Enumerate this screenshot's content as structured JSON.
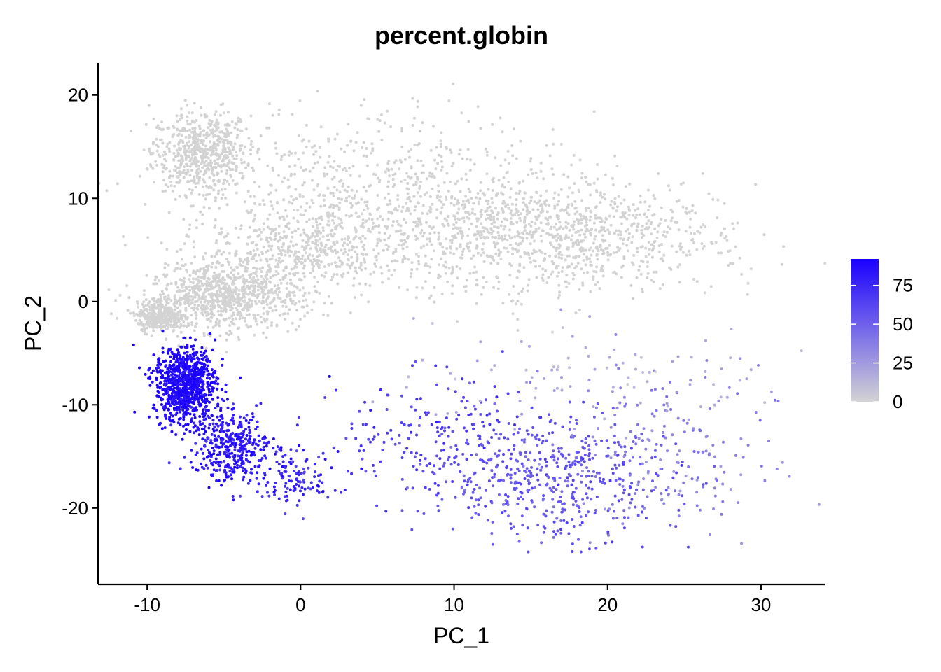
{
  "chart_data": {
    "type": "scatter",
    "title": "percent.globin",
    "xlabel": "PC_1",
    "ylabel": "PC_2",
    "xlim": [
      -13.2,
      34.2
    ],
    "ylim": [
      -27.4,
      23.1
    ],
    "x_ticks": [
      -10,
      0,
      10,
      20,
      30
    ],
    "x_tick_labels": [
      "-10",
      "0",
      "10",
      "20",
      "30"
    ],
    "y_ticks": [
      -20,
      -10,
      0,
      10,
      20
    ],
    "y_tick_labels": [
      "-20",
      "-10",
      "0",
      "10",
      "20"
    ],
    "grid": false,
    "legend": {
      "position": "right",
      "type": "colorbar",
      "range": [
        0,
        92
      ],
      "ticks": [
        0,
        25,
        50,
        75
      ],
      "tick_labels": [
        "0",
        "25",
        "50",
        "75"
      ],
      "low_color": "#d3d3d3",
      "high_color": "#1a00ff"
    },
    "clusters": [
      {
        "name": "",
        "n": 650,
        "cx": -6.5,
        "cy": 14.5,
        "sx": 1.6,
        "sy": 2.0,
        "value": 0
      },
      {
        "name": "",
        "n": 900,
        "cx": -5.0,
        "cy": 0.5,
        "sx": 2.5,
        "sy": 1.6,
        "value": 0
      },
      {
        "name": "",
        "n": 350,
        "cx": -9.2,
        "cy": -1.5,
        "sx": 0.7,
        "sy": 0.7,
        "value": 0
      },
      {
        "name": "",
        "n": 700,
        "cx": 5.0,
        "cy": 10.0,
        "sx": 6.0,
        "sy": 4.0,
        "value": 0
      },
      {
        "name": "",
        "n": 1100,
        "cx": 16.0,
        "cy": 6.5,
        "sx": 5.5,
        "sy": 2.8,
        "value": 0
      },
      {
        "name": "",
        "n": 450,
        "cx": 0.0,
        "cy": 5.0,
        "sx": 3.0,
        "sy": 1.8,
        "value": 0
      },
      {
        "name": "",
        "n": 900,
        "cx": -7.5,
        "cy": -8.0,
        "sx": 1.0,
        "sy": 1.8,
        "value": 90
      },
      {
        "name": "",
        "n": 380,
        "cx": -4.5,
        "cy": -14.0,
        "sx": 1.3,
        "sy": 1.7,
        "value": 82
      },
      {
        "name": "",
        "n": 120,
        "cx": -0.5,
        "cy": -17.0,
        "sx": 1.5,
        "sy": 1.3,
        "value": 75
      },
      {
        "name": "",
        "n": 160,
        "cx": 8.0,
        "cy": -13.0,
        "sx": 3.5,
        "sy": 3.0,
        "value": 65
      },
      {
        "name": "",
        "n": 520,
        "cx": 16.0,
        "cy": -17.0,
        "sx": 4.0,
        "sy": 3.0,
        "value": 55
      },
      {
        "name": "",
        "n": 170,
        "cx": 24.0,
        "cy": -15.0,
        "sx": 3.5,
        "sy": 4.5,
        "value": 35
      },
      {
        "name": "",
        "n": 90,
        "cx": 20.0,
        "cy": -7.0,
        "sx": 6.0,
        "sy": 2.5,
        "value": 18
      }
    ]
  }
}
